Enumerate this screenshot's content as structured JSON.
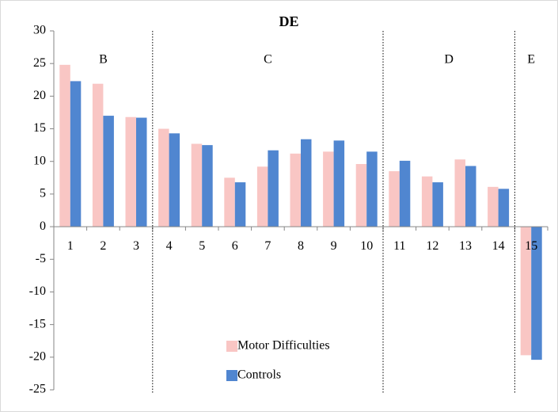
{
  "chart_data": {
    "type": "bar",
    "title": "DE",
    "categories": [
      "1",
      "2",
      "3",
      "4",
      "5",
      "6",
      "7",
      "8",
      "9",
      "10",
      "11",
      "12",
      "13",
      "14",
      "15"
    ],
    "series": [
      {
        "name": "Motor Difficulties",
        "color": "#f9c6c4",
        "values": [
          24.8,
          21.9,
          16.8,
          15.0,
          12.7,
          7.5,
          9.2,
          11.2,
          11.5,
          9.6,
          8.5,
          7.7,
          10.3,
          6.1,
          -19.7
        ]
      },
      {
        "name": "Controls",
        "color": "#5086d0",
        "values": [
          22.3,
          17.0,
          16.7,
          14.3,
          12.5,
          6.8,
          11.7,
          13.4,
          13.2,
          11.5,
          10.1,
          6.8,
          9.3,
          5.8,
          -20.4
        ]
      }
    ],
    "groups": [
      {
        "label": "B",
        "size": 3
      },
      {
        "label": "C",
        "size": 7
      },
      {
        "label": "D",
        "size": 4
      },
      {
        "label": "E",
        "size": 1
      }
    ],
    "ylim": [
      -25,
      30
    ],
    "yticks": [
      -25,
      -20,
      -15,
      -10,
      -5,
      0,
      5,
      10,
      15,
      20,
      25,
      30
    ],
    "grid": false
  }
}
